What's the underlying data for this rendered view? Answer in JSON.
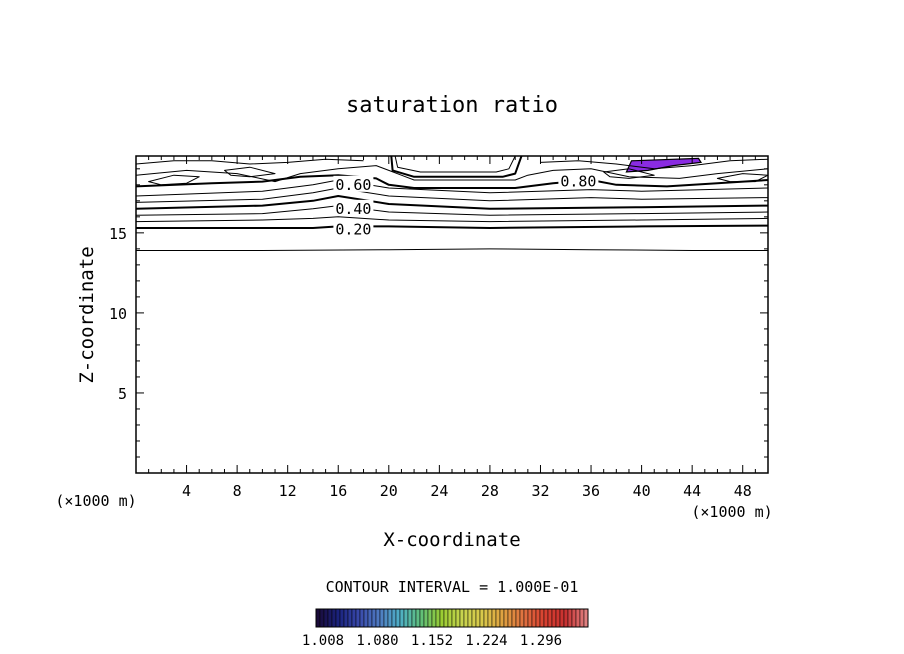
{
  "chart_data": {
    "type": "contour",
    "title": "saturation ratio",
    "xlabel": "X-coordinate",
    "ylabel": "Z-coordinate",
    "x_unit_left": "(×1000 m)",
    "x_unit_right": "(×1000 m)",
    "xlim": [
      0,
      50
    ],
    "ylim": [
      0,
      19.8
    ],
    "x_ticks": [
      4,
      8,
      12,
      16,
      20,
      24,
      28,
      32,
      36,
      40,
      44,
      48
    ],
    "y_ticks": [
      5,
      10,
      15
    ],
    "contour_interval_text": "CONTOUR INTERVAL = 1.000E-01",
    "contour_labels": [
      {
        "text": "0.60",
        "x": 17.2,
        "z": 18.0
      },
      {
        "text": "0.80",
        "x": 35.0,
        "z": 18.2
      },
      {
        "text": "0.40",
        "x": 17.2,
        "z": 16.5
      },
      {
        "text": "0.20",
        "x": 17.2,
        "z": 15.2
      }
    ],
    "contour_lines": [
      {
        "heavy": false,
        "points": [
          [
            0,
            13.9
          ],
          [
            10,
            13.9
          ],
          [
            20,
            13.95
          ],
          [
            28,
            14.0
          ],
          [
            36,
            13.95
          ],
          [
            44,
            13.9
          ],
          [
            50,
            13.9
          ]
        ]
      },
      {
        "heavy": true,
        "points": [
          [
            0,
            15.3
          ],
          [
            10,
            15.3
          ],
          [
            14,
            15.3
          ],
          [
            16,
            15.4
          ],
          [
            20,
            15.4
          ],
          [
            28,
            15.3
          ],
          [
            40,
            15.4
          ],
          [
            50,
            15.45
          ]
        ]
      },
      {
        "heavy": false,
        "points": [
          [
            0,
            15.7
          ],
          [
            10,
            15.8
          ],
          [
            14,
            15.9
          ],
          [
            16,
            16.0
          ],
          [
            20,
            15.8
          ],
          [
            28,
            15.7
          ],
          [
            40,
            15.8
          ],
          [
            50,
            15.9
          ]
        ]
      },
      {
        "heavy": false,
        "points": [
          [
            0,
            16.1
          ],
          [
            10,
            16.2
          ],
          [
            14,
            16.5
          ],
          [
            16,
            16.7
          ],
          [
            20,
            16.3
          ],
          [
            28,
            16.1
          ],
          [
            40,
            16.2
          ],
          [
            50,
            16.3
          ]
        ]
      },
      {
        "heavy": true,
        "points": [
          [
            0,
            16.5
          ],
          [
            10,
            16.7
          ],
          [
            14,
            17.0
          ],
          [
            16,
            17.3
          ],
          [
            20,
            16.8
          ],
          [
            28,
            16.5
          ],
          [
            40,
            16.6
          ],
          [
            50,
            16.7
          ]
        ]
      },
      {
        "heavy": false,
        "points": [
          [
            0,
            16.9
          ],
          [
            10,
            17.1
          ],
          [
            14,
            17.5
          ],
          [
            16,
            17.8
          ],
          [
            20,
            17.3
          ],
          [
            28,
            17.0
          ],
          [
            36,
            17.2
          ],
          [
            40,
            17.1
          ],
          [
            50,
            17.2
          ]
        ]
      },
      {
        "heavy": false,
        "points": [
          [
            0,
            17.3
          ],
          [
            10,
            17.6
          ],
          [
            14,
            18.0
          ],
          [
            16,
            18.3
          ],
          [
            20,
            17.8
          ],
          [
            28,
            17.5
          ],
          [
            36,
            17.7
          ],
          [
            40,
            17.6
          ],
          [
            50,
            17.8
          ]
        ]
      },
      {
        "heavy": true,
        "points": [
          [
            0,
            17.9
          ],
          [
            6,
            18.1
          ],
          [
            10,
            18.2
          ],
          [
            13,
            18.5
          ],
          [
            16,
            18.6
          ],
          [
            19,
            18.4
          ],
          [
            20,
            18.0
          ],
          [
            22,
            17.8
          ],
          [
            30,
            17.8
          ],
          [
            33,
            18.1
          ],
          [
            36,
            18.3
          ],
          [
            38,
            18.0
          ],
          [
            42,
            17.9
          ],
          [
            46,
            18.1
          ],
          [
            50,
            18.3
          ]
        ]
      },
      {
        "heavy": false,
        "points": [
          [
            0,
            18.6
          ],
          [
            4,
            18.9
          ],
          [
            8,
            18.7
          ],
          [
            11,
            18.2
          ],
          [
            13,
            18.7
          ],
          [
            16,
            19.0
          ],
          [
            19,
            19.2
          ],
          [
            20,
            18.9
          ],
          [
            21,
            18.6
          ],
          [
            22,
            18.3
          ],
          [
            30,
            18.3
          ],
          [
            31,
            18.6
          ],
          [
            33,
            18.9
          ],
          [
            36,
            19.0
          ],
          [
            39,
            18.5
          ],
          [
            43,
            18.4
          ],
          [
            46,
            18.7
          ],
          [
            50,
            19.0
          ]
        ]
      },
      {
        "heavy": true,
        "points": [
          [
            20.2,
            19.8
          ],
          [
            20.3,
            18.9
          ],
          [
            22,
            18.5
          ],
          [
            29,
            18.5
          ],
          [
            30,
            18.7
          ],
          [
            30.5,
            19.8
          ]
        ]
      },
      {
        "heavy": false,
        "points": [
          [
            20.5,
            19.8
          ],
          [
            20.7,
            19.1
          ],
          [
            22.5,
            18.8
          ],
          [
            28.5,
            18.8
          ],
          [
            29.5,
            19.0
          ],
          [
            30,
            19.8
          ]
        ]
      },
      {
        "heavy": false,
        "points": [
          [
            0,
            19.3
          ],
          [
            3,
            19.5
          ],
          [
            6,
            19.5
          ],
          [
            9,
            19.3
          ],
          [
            12,
            19.4
          ],
          [
            15,
            19.6
          ],
          [
            18,
            19.5
          ]
        ]
      },
      {
        "heavy": false,
        "points": [
          [
            32,
            19.4
          ],
          [
            35,
            19.5
          ],
          [
            38,
            19.3
          ],
          [
            41,
            19.0
          ],
          [
            44,
            19.2
          ],
          [
            47,
            19.5
          ],
          [
            50,
            19.6
          ]
        ]
      }
    ],
    "closed_contours": [
      {
        "heavy": false,
        "points": [
          [
            1,
            18.2
          ],
          [
            3,
            18.6
          ],
          [
            5,
            18.5
          ],
          [
            4,
            18.1
          ],
          [
            2,
            18.0
          ]
        ]
      },
      {
        "heavy": false,
        "points": [
          [
            7,
            18.9
          ],
          [
            9,
            19.1
          ],
          [
            11,
            18.7
          ],
          [
            9,
            18.5
          ],
          [
            7.5,
            18.6
          ]
        ]
      },
      {
        "heavy": false,
        "points": [
          [
            37,
            18.8
          ],
          [
            39,
            19.0
          ],
          [
            41,
            18.6
          ],
          [
            39,
            18.4
          ],
          [
            37.5,
            18.5
          ]
        ]
      },
      {
        "heavy": false,
        "points": [
          [
            46,
            18.4
          ],
          [
            48,
            18.7
          ],
          [
            50,
            18.6
          ],
          [
            49,
            18.2
          ],
          [
            47,
            18.2
          ]
        ]
      }
    ],
    "filled_regions": [
      {
        "color": "#8a2be2",
        "value": 1.008,
        "points": [
          [
            38.8,
            18.8
          ],
          [
            39.2,
            19.5
          ],
          [
            44.5,
            19.65
          ],
          [
            44.7,
            19.4
          ],
          [
            42.5,
            19.2
          ],
          [
            40.5,
            18.9
          ]
        ]
      }
    ],
    "colorbar": {
      "tick_labels": [
        "1.008",
        "1.080",
        "1.152",
        "1.224",
        "1.296"
      ],
      "colors": [
        "#1a0b3a",
        "#1a237e",
        "#3949ab",
        "#4f7cc2",
        "#4fb0c6",
        "#5fbf7a",
        "#9acd32",
        "#c8d44e",
        "#d9c84a",
        "#e0a040",
        "#e07040",
        "#d84030",
        "#c83030",
        "#e08080"
      ]
    }
  }
}
